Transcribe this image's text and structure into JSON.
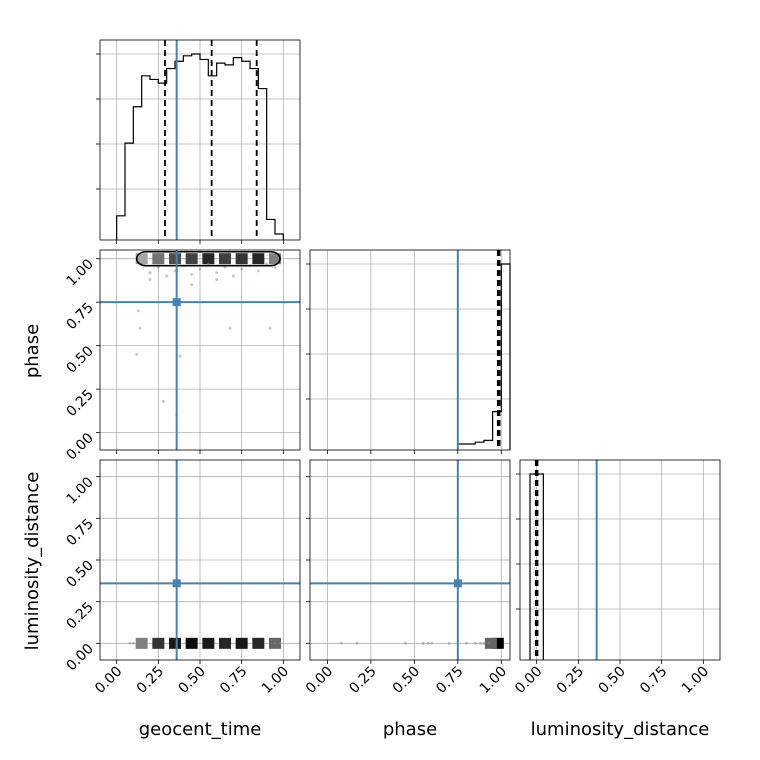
{
  "chart_data": {
    "type": "corner",
    "parameters": [
      "geocent_time",
      "phase",
      "luminosity_distance"
    ],
    "truths": {
      "geocent_time": 0.36,
      "phase": 0.75,
      "luminosity_distance": 0.36
    },
    "colors": {
      "truth": "#4682b4",
      "hist": "#000000",
      "grid": "#b0b0b0"
    },
    "axes": {
      "geocent_time": {
        "range": [
          -0.1,
          1.1
        ],
        "ticks": [
          0.0,
          0.25,
          0.5,
          0.75,
          1.0
        ],
        "tick_labels": [
          "0.00",
          "0.25",
          "0.50",
          "0.75",
          "1.00"
        ]
      },
      "phase": {
        "range": [
          -0.1,
          1.05
        ],
        "ticks": [
          0.0,
          0.25,
          0.5,
          0.75,
          1.0
        ],
        "tick_labels": [
          "0.00",
          "0.25",
          "0.50",
          "0.75",
          "1.00"
        ]
      },
      "luminosity_distance": {
        "range": [
          -0.1,
          1.1
        ],
        "ticks": [
          0.0,
          0.25,
          0.5,
          0.75,
          1.0
        ],
        "tick_labels": [
          "0.00",
          "0.25",
          "0.50",
          "0.75",
          "1.00"
        ]
      }
    },
    "histograms": {
      "geocent_time": {
        "bin_edges": [
          0.0,
          0.05,
          0.1,
          0.15,
          0.2,
          0.25,
          0.3,
          0.35,
          0.4,
          0.45,
          0.5,
          0.55,
          0.6,
          0.65,
          0.7,
          0.75,
          0.8,
          0.85,
          0.9,
          0.95,
          1.0
        ],
        "counts": [
          0.1,
          0.5,
          0.7,
          0.87,
          0.85,
          0.83,
          0.91,
          0.95,
          0.98,
          0.99,
          0.96,
          0.87,
          0.94,
          0.93,
          0.97,
          0.95,
          0.91,
          0.8,
          0.08,
          0.0
        ],
        "quantiles": [
          0.29,
          0.57,
          0.84
        ]
      },
      "phase": {
        "bin_edges": [
          0.75,
          0.8,
          0.85,
          0.9,
          0.95,
          1.0,
          1.05
        ],
        "counts": [
          0.0,
          0.0,
          0.01,
          0.02,
          0.18,
          1.0
        ],
        "quantiles": [
          0.98,
          0.985,
          0.99
        ]
      },
      "luminosity_distance": {
        "bin_edges": [
          -0.04,
          0.0,
          0.04
        ],
        "counts": [
          1.0,
          1.0
        ],
        "quantiles": [
          -0.005,
          0.0,
          0.005
        ]
      }
    },
    "scatter": {
      "phase_vs_geocent_time": {
        "points": [
          [
            0.15,
            0.97
          ],
          [
            0.2,
            0.92
          ],
          [
            0.25,
            0.95
          ],
          [
            0.3,
            0.9
          ],
          [
            0.35,
            0.93
          ],
          [
            0.4,
            0.96
          ],
          [
            0.45,
            0.91
          ],
          [
            0.5,
            0.94
          ],
          [
            0.55,
            0.97
          ],
          [
            0.6,
            0.92
          ],
          [
            0.65,
            0.95
          ],
          [
            0.7,
            0.9
          ],
          [
            0.75,
            0.94
          ],
          [
            0.8,
            0.96
          ],
          [
            0.85,
            0.93
          ],
          [
            0.9,
            0.97
          ],
          [
            0.95,
            0.95
          ],
          [
            0.13,
            0.7
          ],
          [
            0.14,
            0.6
          ],
          [
            0.12,
            0.45
          ],
          [
            0.28,
            0.18
          ],
          [
            0.36,
            0.1
          ],
          [
            0.38,
            0.44
          ],
          [
            0.45,
            0.85
          ],
          [
            0.68,
            0.6
          ],
          [
            0.92,
            0.6
          ],
          [
            0.2,
            0.88
          ],
          [
            0.6,
            0.88
          ]
        ],
        "density_cells": [
          [
            0.15,
            1.0,
            0.35
          ],
          [
            0.25,
            1.0,
            0.55
          ],
          [
            0.35,
            1.0,
            0.7
          ],
          [
            0.45,
            1.0,
            0.75
          ],
          [
            0.55,
            1.0,
            0.85
          ],
          [
            0.65,
            1.0,
            0.75
          ],
          [
            0.75,
            1.0,
            0.8
          ],
          [
            0.85,
            1.0,
            0.85
          ],
          [
            0.95,
            1.0,
            0.5
          ]
        ],
        "contour": {
          "x": [
            0.12,
            0.98
          ],
          "y": [
            0.96,
            1.04
          ]
        }
      },
      "luminosity_distance_vs_geocent_time": {
        "points": [
          [
            0.08,
            0.0
          ],
          [
            0.1,
            0.0
          ],
          [
            0.95,
            0.0
          ],
          [
            0.98,
            0.0
          ]
        ],
        "density_cells": [
          [
            0.15,
            0.0,
            0.5
          ],
          [
            0.25,
            0.0,
            0.8
          ],
          [
            0.35,
            0.0,
            0.9
          ],
          [
            0.45,
            0.0,
            0.95
          ],
          [
            0.55,
            0.0,
            0.9
          ],
          [
            0.65,
            0.0,
            0.85
          ],
          [
            0.75,
            0.0,
            0.9
          ],
          [
            0.85,
            0.0,
            0.85
          ],
          [
            0.95,
            0.0,
            0.6
          ]
        ]
      },
      "luminosity_distance_vs_phase": {
        "points": [
          [
            0.08,
            0.0
          ],
          [
            0.17,
            0.0
          ],
          [
            0.45,
            0.0
          ],
          [
            0.55,
            0.0
          ],
          [
            0.58,
            0.0
          ],
          [
            0.6,
            0.0
          ],
          [
            0.7,
            0.0
          ],
          [
            0.8,
            0.0
          ],
          [
            0.85,
            0.0
          ],
          [
            0.88,
            0.0
          ],
          [
            0.9,
            0.0
          ],
          [
            0.93,
            0.0
          ]
        ],
        "density_cells": [
          [
            0.98,
            0.0,
            1.0
          ],
          [
            0.94,
            0.0,
            0.6
          ]
        ]
      }
    }
  }
}
